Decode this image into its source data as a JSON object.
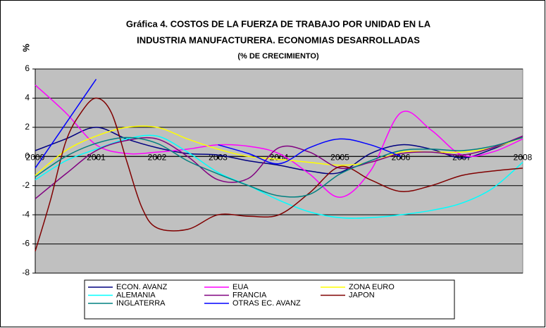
{
  "chart_data": {
    "type": "line",
    "title": [
      "Gráfica 4. COSTOS DE LA FUERZA DE TRABAJO POR UNIDAD EN LA",
      "INDUSTRIA MANUFACTURERA. ECONOMIAS DESARROLLADAS"
    ],
    "subtitle": "(% DE CRECIMIENTO)",
    "y_label": "%",
    "xlim": [
      2000,
      2008
    ],
    "xticks": [
      2000,
      2001,
      2002,
      2003,
      2004,
      2005,
      2006,
      2007,
      2008
    ],
    "ylim": [
      -8,
      6
    ],
    "yticks": [
      -8,
      -6,
      -4,
      -2,
      0,
      2,
      4,
      6
    ],
    "grid": true,
    "legend": "bottom",
    "series": [
      {
        "name": "ECON. AVANZ",
        "color": "#000080",
        "x": [
          2000,
          2000.5,
          2001,
          2001.5,
          2002,
          2002.5,
          2003,
          2003.5,
          2004,
          2004.5,
          2005,
          2005.5,
          2006,
          2006.5,
          2007,
          2007.5,
          2008
        ],
        "values": [
          0.4,
          1.2,
          2.0,
          1.2,
          0.6,
          0.2,
          0.1,
          -0.3,
          -0.6,
          -1.0,
          -1.1,
          0.2,
          0.8,
          0.5,
          -0.1,
          0.5,
          1.4
        ]
      },
      {
        "name": "EUA",
        "color": "#ff00ff",
        "x": [
          2000,
          2000.5,
          2001,
          2001.5,
          2002,
          2002.5,
          2003,
          2003.5,
          2004,
          2004.5,
          2005,
          2005.5,
          2006,
          2006.5,
          2007,
          2007.5,
          2008
        ],
        "values": [
          4.9,
          3.0,
          0.8,
          0.2,
          0.3,
          0.5,
          0.8,
          0.7,
          0.2,
          -1.2,
          -2.8,
          -1.0,
          3.0,
          1.8,
          0.1,
          0.3,
          1.2
        ]
      },
      {
        "name": "ZONA EURO",
        "color": "#ffff00",
        "x": [
          2000,
          2000.5,
          2001,
          2001.5,
          2002,
          2002.5,
          2003,
          2003.5,
          2004,
          2004.5,
          2005,
          2005.5,
          2006,
          2006.5,
          2007,
          2007.5,
          2008
        ],
        "values": [
          -1.3,
          0.4,
          1.4,
          2.0,
          2.0,
          1.2,
          0.5,
          0.0,
          -0.2,
          -0.4,
          -0.6,
          -0.4,
          0.3,
          0.3,
          0.3,
          0.6,
          1.3
        ]
      },
      {
        "name": "ALEMANIA",
        "color": "#00ffff",
        "x": [
          2000,
          2000.5,
          2001,
          2001.5,
          2002,
          2002.5,
          2003,
          2003.5,
          2004,
          2004.5,
          2005,
          2005.5,
          2006,
          2006.5,
          2007,
          2007.5,
          2008
        ],
        "values": [
          -1.6,
          -0.3,
          0.5,
          1.2,
          1.4,
          0.3,
          -1.1,
          -2.0,
          -3.0,
          -3.8,
          -4.2,
          -4.2,
          -4.0,
          -3.7,
          -3.2,
          -2.2,
          -0.4
        ]
      },
      {
        "name": "FRANCIA",
        "color": "#800080",
        "x": [
          2000,
          2000.5,
          2001,
          2001.5,
          2002,
          2002.5,
          2003,
          2003.5,
          2004,
          2004.5,
          2005,
          2005.5,
          2006,
          2006.5,
          2007,
          2007.5,
          2008
        ],
        "values": [
          -2.9,
          -1.2,
          0.4,
          1.1,
          1.2,
          0.0,
          -1.6,
          -1.5,
          0.6,
          0.3,
          -0.8,
          -0.4,
          0.2,
          0.3,
          0.1,
          0.6,
          1.4
        ]
      },
      {
        "name": "JAPON",
        "color": "#800000",
        "x": [
          2000,
          2000.25,
          2000.5,
          2000.75,
          2001,
          2001.25,
          2001.5,
          2001.75,
          2002,
          2002.5,
          2003,
          2003.5,
          2004,
          2004.5,
          2005,
          2005.5,
          2006,
          2006.5,
          2007,
          2007.5,
          2008
        ],
        "values": [
          -6.5,
          -3.0,
          1.0,
          3.0,
          4.0,
          3.0,
          -0.3,
          -3.5,
          -4.9,
          -5.0,
          -4.0,
          -4.1,
          -4.0,
          -2.5,
          -0.7,
          -1.6,
          -2.4,
          -2.0,
          -1.3,
          -1.0,
          -0.8
        ]
      },
      {
        "name": "INGLATERRA",
        "color": "#008080",
        "x": [
          2000,
          2000.5,
          2001,
          2001.5,
          2002,
          2002.5,
          2003,
          2003.5,
          2004,
          2004.5,
          2005,
          2005.5,
          2006,
          2006.5,
          2007,
          2007.5,
          2008
        ],
        "values": [
          -1.4,
          0.0,
          0.9,
          1.3,
          0.9,
          -0.3,
          -1.2,
          -2.0,
          -2.7,
          -2.6,
          -1.2,
          -0.3,
          0.4,
          0.5,
          0.4,
          0.7,
          1.3
        ]
      },
      {
        "name": "OTRAS EC. AVANZ",
        "color": "#0000ff",
        "x": [
          2000,
          2001,
          2002,
          2003,
          2003.5,
          2004,
          2004.5,
          2005,
          2005.5,
          2006
        ],
        "values": [
          -0.8,
          5.3,
          null,
          0.8,
          0.2,
          -0.5,
          0.6,
          1.2,
          0.8,
          0.0
        ]
      }
    ]
  }
}
